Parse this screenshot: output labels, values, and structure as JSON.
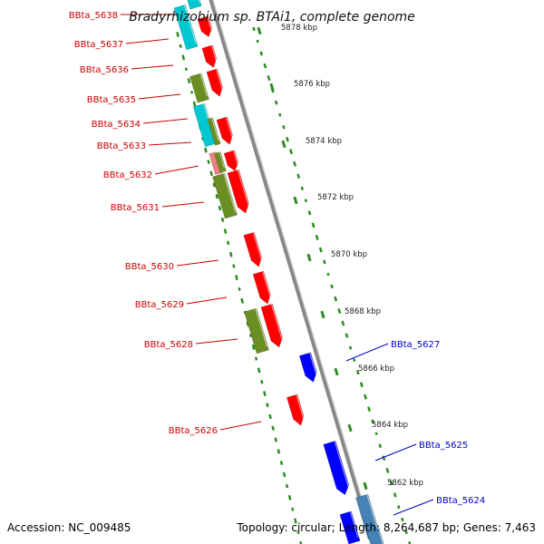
{
  "title": "Bradyrhizobium sp. BTAi1, complete genome",
  "accession": "Accession: NC_009485",
  "summary": "Topology: circular; Length: 8,264,687 bp; Genes: 7,463",
  "colors": {
    "backbone": "#888888",
    "gc_dots": "#2e8b22",
    "forward_gene": "#ff0000",
    "reverse_gene": "#0000ff",
    "forward_label": "#cc0000",
    "reverse_label": "#0000cc",
    "rna_cyan": "#00c8d2",
    "olive": "#6b8e23",
    "salmon": "#f08080",
    "steel": "#4682b4"
  },
  "scale_ticks": [
    {
      "label": "5878 kbp"
    },
    {
      "label": "5876 kbp"
    },
    {
      "label": "5874 kbp"
    },
    {
      "label": "5872 kbp"
    },
    {
      "label": "5870 kbp"
    },
    {
      "label": "5868 kbp"
    },
    {
      "label": "5866 kbp"
    },
    {
      "label": "5864 kbp"
    },
    {
      "label": "5862 kbp"
    }
  ],
  "gene_labels": [
    {
      "id": "BBta_5638",
      "strand": "forward"
    },
    {
      "id": "BBta_5637",
      "strand": "forward"
    },
    {
      "id": "BBta_5636",
      "strand": "forward"
    },
    {
      "id": "BBta_5635",
      "strand": "forward"
    },
    {
      "id": "BBta_5634",
      "strand": "forward"
    },
    {
      "id": "BBta_5633",
      "strand": "forward"
    },
    {
      "id": "BBta_5632",
      "strand": "forward"
    },
    {
      "id": "BBta_5631",
      "strand": "forward"
    },
    {
      "id": "BBta_5630",
      "strand": "forward"
    },
    {
      "id": "BBta_5629",
      "strand": "forward"
    },
    {
      "id": "BBta_5628",
      "strand": "forward"
    },
    {
      "id": "BBta_5626",
      "strand": "forward"
    },
    {
      "id": "BBta_5627",
      "strand": "reverse"
    },
    {
      "id": "BBta_5625",
      "strand": "reverse"
    },
    {
      "id": "BBta_5624",
      "strand": "reverse"
    }
  ]
}
